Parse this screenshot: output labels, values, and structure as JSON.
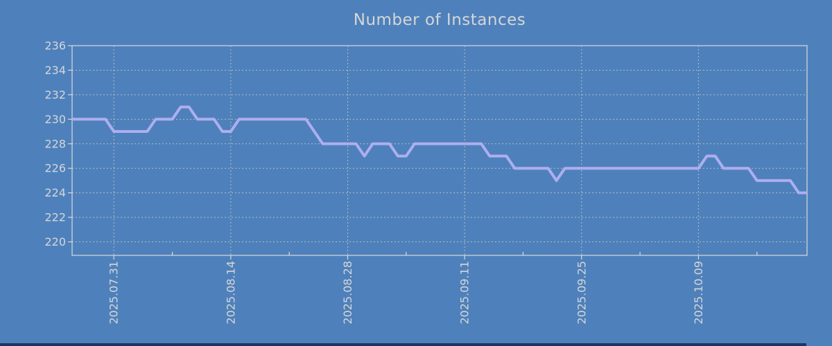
{
  "page": {
    "background_color": "#4e81bc",
    "bottom_edge_color": "#1d3366"
  },
  "chart_data": {
    "type": "line",
    "title": "Number of Instances",
    "xlabel": "",
    "ylabel": "",
    "grid": true,
    "legend_position": "none",
    "ylim": [
      218.9,
      236
    ],
    "y_ticks": [
      220,
      222,
      224,
      226,
      228,
      230,
      232,
      234,
      236
    ],
    "x_tick_labels": [
      "2025.07.31",
      "2025.08.14",
      "2025.08.28",
      "2025.09.11",
      "2025.09.25",
      "2025.10.09"
    ],
    "x_tick_dates": [
      "2025-07-31",
      "2025-08-14",
      "2025-08-28",
      "2025-09-11",
      "2025-09-25",
      "2025-10-09"
    ],
    "x_minor_tick_dates": [
      "2025-08-07",
      "2025-08-21",
      "2025-09-04",
      "2025-09-18",
      "2025-10-02",
      "2025-10-16"
    ],
    "style": {
      "text_color": "#d6d6d6",
      "grid_color": "#c9c7bd",
      "axis_color": "#dadada",
      "line_width": 4
    },
    "series": [
      {
        "name": "Number of Instances",
        "color": "#aeaeee",
        "start_date": "2025-07-26",
        "interval": "1 day",
        "dates": [
          "2025-07-26",
          "2025-07-27",
          "2025-07-28",
          "2025-07-29",
          "2025-07-30",
          "2025-07-31",
          "2025-08-01",
          "2025-08-02",
          "2025-08-03",
          "2025-08-04",
          "2025-08-05",
          "2025-08-06",
          "2025-08-07",
          "2025-08-08",
          "2025-08-09",
          "2025-08-10",
          "2025-08-11",
          "2025-08-12",
          "2025-08-13",
          "2025-08-14",
          "2025-08-15",
          "2025-08-16",
          "2025-08-17",
          "2025-08-18",
          "2025-08-19",
          "2025-08-20",
          "2025-08-21",
          "2025-08-22",
          "2025-08-23",
          "2025-08-24",
          "2025-08-25",
          "2025-08-26",
          "2025-08-27",
          "2025-08-28",
          "2025-08-29",
          "2025-08-30",
          "2025-08-31",
          "2025-09-01",
          "2025-09-02",
          "2025-09-03",
          "2025-09-04",
          "2025-09-05",
          "2025-09-06",
          "2025-09-07",
          "2025-09-08",
          "2025-09-09",
          "2025-09-10",
          "2025-09-11",
          "2025-09-12",
          "2025-09-13",
          "2025-09-14",
          "2025-09-15",
          "2025-09-16",
          "2025-09-17",
          "2025-09-18",
          "2025-09-19",
          "2025-09-20",
          "2025-09-21",
          "2025-09-22",
          "2025-09-23",
          "2025-09-24",
          "2025-09-25",
          "2025-09-26",
          "2025-09-27",
          "2025-09-28",
          "2025-09-29",
          "2025-09-30",
          "2025-10-01",
          "2025-10-02",
          "2025-10-03",
          "2025-10-04",
          "2025-10-05",
          "2025-10-06",
          "2025-10-07",
          "2025-10-08",
          "2025-10-09",
          "2025-10-10",
          "2025-10-11",
          "2025-10-12",
          "2025-10-13",
          "2025-10-14",
          "2025-10-15",
          "2025-10-16",
          "2025-10-17",
          "2025-10-18",
          "2025-10-19",
          "2025-10-20",
          "2025-10-21",
          "2025-10-22"
        ],
        "values": [
          230,
          230,
          230,
          230,
          230,
          229,
          229,
          229,
          229,
          229,
          230,
          230,
          230,
          231,
          231,
          230,
          230,
          230,
          229,
          229,
          230,
          230,
          230,
          230,
          230,
          230,
          230,
          230,
          230,
          229,
          228,
          228,
          228,
          228,
          228,
          227,
          228,
          228,
          228,
          227,
          227,
          228,
          228,
          228,
          228,
          228,
          228,
          228,
          228,
          228,
          227,
          227,
          227,
          226,
          226,
          226,
          226,
          226,
          225,
          226,
          226,
          226,
          226,
          226,
          226,
          226,
          226,
          226,
          226,
          226,
          226,
          226,
          226,
          226,
          226,
          226,
          227,
          227,
          226,
          226,
          226,
          226,
          225,
          225,
          225,
          225,
          225,
          224,
          224
        ]
      }
    ]
  }
}
